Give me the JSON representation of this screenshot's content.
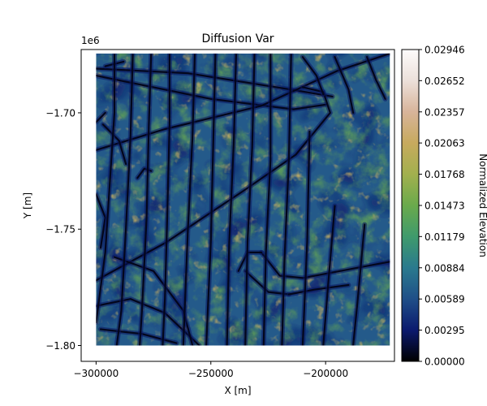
{
  "chart_data": {
    "type": "heatmap",
    "title": "Diffusion Var",
    "xlabel": "X [m]",
    "ylabel": "Y [m]",
    "y_offset_label": "1e6",
    "xlim": [
      -306500,
      -170000
    ],
    "ylim": [
      -1806800,
      -1672800
    ],
    "data_extent": {
      "x": [
        -300000,
        -172000
      ],
      "y": [
        -1800000,
        -1674500
      ]
    },
    "x_ticks": [
      {
        "value": -300000,
        "label": "−300000"
      },
      {
        "value": -250000,
        "label": "−250000"
      },
      {
        "value": -200000,
        "label": "−200000"
      }
    ],
    "y_ticks": [
      {
        "value": -1700000,
        "label": "−1.70"
      },
      {
        "value": -1750000,
        "label": "−1.75"
      },
      {
        "value": -1800000,
        "label": "−1.80"
      }
    ],
    "colorbar": {
      "label": "Normalized Elevation",
      "colormap": "gist_earth",
      "min": 0.0,
      "max": 0.02946,
      "ticks": [
        {
          "value": 0.0,
          "label": "0.00000"
        },
        {
          "value": 0.00295,
          "label": "0.00295"
        },
        {
          "value": 0.00589,
          "label": "0.00589"
        },
        {
          "value": 0.00884,
          "label": "0.00884"
        },
        {
          "value": 0.01179,
          "label": "0.01179"
        },
        {
          "value": 0.01473,
          "label": "0.01473"
        },
        {
          "value": 0.01768,
          "label": "0.01768"
        },
        {
          "value": 0.02063,
          "label": "0.02063"
        },
        {
          "value": 0.02357,
          "label": "0.02357"
        },
        {
          "value": 0.02652,
          "label": "0.02652"
        },
        {
          "value": 0.02946,
          "label": "0.02946"
        }
      ],
      "stops": [
        "#000000",
        "#0b1a6e",
        "#1f4f88",
        "#2a7a8e",
        "#3f9a6c",
        "#6aaa4c",
        "#a2b04e",
        "#c7aa5e",
        "#d8b49a",
        "#ece0da",
        "#fdfbfb"
      ]
    },
    "field_pattern": {
      "description_levels": {
        "background_low": 0.004,
        "typical": 0.012,
        "high_patches": 0.022
      }
    },
    "features": [
      {
        "kind": "track",
        "pts": [
          [
            -300000,
            -1681000
          ],
          [
            -260000,
            -1683000
          ],
          [
            -215000,
            -1690000
          ],
          [
            -197000,
            -1693000
          ]
        ]
      },
      {
        "kind": "track",
        "pts": [
          [
            -300000,
            -1684000
          ],
          [
            -250000,
            -1694000
          ],
          [
            -214000,
            -1698500
          ],
          [
            -200000,
            -1696500
          ]
        ]
      },
      {
        "kind": "track",
        "pts": [
          [
            -300000,
            -1716000
          ],
          [
            -270000,
            -1707000
          ],
          [
            -228000,
            -1697000
          ],
          [
            -195000,
            -1682000
          ],
          [
            -172000,
            -1674500
          ]
        ]
      },
      {
        "kind": "track",
        "pts": [
          [
            -300000,
            -1772000
          ],
          [
            -270000,
            -1756000
          ],
          [
            -235000,
            -1733000
          ],
          [
            -213000,
            -1718000
          ],
          [
            -198000,
            -1700000
          ],
          [
            -201000,
            -1691000
          ],
          [
            -210000,
            -1689000
          ]
        ]
      },
      {
        "kind": "track",
        "pts": [
          [
            -300000,
            -1783000
          ],
          [
            -285000,
            -1780000
          ],
          [
            -270000,
            -1786000
          ],
          [
            -255000,
            -1800000
          ]
        ]
      },
      {
        "kind": "track",
        "pts": [
          [
            -298000,
            -1793000
          ],
          [
            -280000,
            -1795000
          ],
          [
            -265000,
            -1799000
          ]
        ]
      },
      {
        "kind": "track",
        "pts": [
          [
            -292000,
            -1762000
          ],
          [
            -275000,
            -1768000
          ],
          [
            -262000,
            -1785000
          ],
          [
            -258000,
            -1800000
          ]
        ]
      },
      {
        "kind": "track",
        "pts": [
          [
            -228000,
            -1760000
          ],
          [
            -220000,
            -1770000
          ],
          [
            -210000,
            -1771000
          ],
          [
            -172000,
            -1764000
          ]
        ]
      },
      {
        "kind": "track",
        "pts": [
          [
            -238000,
            -1768000
          ],
          [
            -234000,
            -1760000
          ],
          [
            -228000,
            -1760000
          ]
        ]
      },
      {
        "kind": "track",
        "pts": [
          [
            -235000,
            -1768000
          ],
          [
            -225000,
            -1777000
          ],
          [
            -216000,
            -1778000
          ]
        ]
      },
      {
        "kind": "track",
        "pts": [
          [
            -216000,
            -1778000
          ],
          [
            -205000,
            -1776000
          ],
          [
            -190000,
            -1774000
          ]
        ]
      },
      {
        "kind": "track",
        "pts": [
          [
            -300000,
            -1735000
          ],
          [
            -296000,
            -1745000
          ],
          [
            -298000,
            -1758000
          ]
        ]
      },
      {
        "kind": "track",
        "pts": [
          [
            -297000,
            -1705000
          ],
          [
            -290000,
            -1712000
          ],
          [
            -287000,
            -1722000
          ]
        ]
      },
      {
        "kind": "track",
        "pts": [
          [
            -300000,
            -1704000
          ],
          [
            -296000,
            -1700000
          ]
        ]
      },
      {
        "kind": "track",
        "pts": [
          [
            -282000,
            -1728000
          ],
          [
            -279000,
            -1724000
          ],
          [
            -276000,
            -1725000
          ]
        ]
      },
      {
        "kind": "track",
        "pts": [
          [
            -296000,
            -1680000
          ],
          [
            -288000,
            -1678000
          ]
        ]
      },
      {
        "kind": "track",
        "pts": [
          [
            -210000,
            -1676000
          ],
          [
            -204000,
            -1684000
          ],
          [
            -201000,
            -1692000
          ]
        ]
      },
      {
        "kind": "track",
        "pts": [
          [
            -196000,
            -1676000
          ],
          [
            -190000,
            -1690000
          ],
          [
            -188000,
            -1700000
          ]
        ]
      },
      {
        "kind": "track",
        "pts": [
          [
            -182000,
            -1676000
          ],
          [
            -178000,
            -1686000
          ],
          [
            -174000,
            -1694000
          ]
        ]
      },
      {
        "kind": "track",
        "pts": [
          [
            -292000,
            -1675000
          ],
          [
            -292000,
            -1700000
          ],
          [
            -294000,
            -1730000
          ],
          [
            -296000,
            -1760000
          ],
          [
            -300000,
            -1790000
          ]
        ]
      },
      {
        "kind": "track",
        "pts": [
          [
            -284000,
            -1675000
          ],
          [
            -285000,
            -1710000
          ],
          [
            -287000,
            -1750000
          ],
          [
            -289000,
            -1785000
          ],
          [
            -291000,
            -1800000
          ]
        ]
      },
      {
        "kind": "track",
        "pts": [
          [
            -276000,
            -1675000
          ],
          [
            -277000,
            -1705000
          ],
          [
            -278000,
            -1745000
          ],
          [
            -280000,
            -1785000
          ],
          [
            -281000,
            -1800000
          ]
        ]
      },
      {
        "kind": "track",
        "pts": [
          [
            -268000,
            -1675000
          ],
          [
            -268000,
            -1705000
          ],
          [
            -269000,
            -1745000
          ],
          [
            -270000,
            -1780000
          ],
          [
            -271000,
            -1800000
          ]
        ]
      },
      {
        "kind": "track",
        "pts": [
          [
            -257000,
            -1675000
          ],
          [
            -258000,
            -1710000
          ],
          [
            -260000,
            -1750000
          ],
          [
            -262000,
            -1800000
          ]
        ]
      },
      {
        "kind": "track",
        "pts": [
          [
            -248000,
            -1675000
          ],
          [
            -249000,
            -1715000
          ],
          [
            -250000,
            -1755000
          ],
          [
            -252000,
            -1800000
          ]
        ]
      },
      {
        "kind": "track",
        "pts": [
          [
            -239000,
            -1675000
          ],
          [
            -240000,
            -1712000
          ],
          [
            -242000,
            -1756000
          ],
          [
            -243000,
            -1800000
          ]
        ]
      },
      {
        "kind": "track",
        "pts": [
          [
            -231000,
            -1675000
          ],
          [
            -232000,
            -1715000
          ],
          [
            -234000,
            -1755000
          ],
          [
            -235000,
            -1800000
          ]
        ]
      },
      {
        "kind": "track",
        "pts": [
          [
            -224000,
            -1675000
          ],
          [
            -224000,
            -1720000
          ],
          [
            -226000,
            -1760000
          ],
          [
            -227000,
            -1800000
          ]
        ]
      },
      {
        "kind": "track",
        "pts": [
          [
            -215000,
            -1675000
          ],
          [
            -216000,
            -1720000
          ],
          [
            -218000,
            -1765000
          ],
          [
            -219000,
            -1800000
          ]
        ]
      },
      {
        "kind": "track",
        "pts": [
          [
            -207000,
            -1708000
          ],
          [
            -208000,
            -1755000
          ],
          [
            -210000,
            -1800000
          ]
        ]
      },
      {
        "kind": "track",
        "pts": [
          [
            -196000,
            -1740000
          ],
          [
            -199000,
            -1775000
          ],
          [
            -201000,
            -1800000
          ]
        ]
      },
      {
        "kind": "track",
        "pts": [
          [
            -183000,
            -1748000
          ],
          [
            -186000,
            -1780000
          ],
          [
            -188000,
            -1800000
          ]
        ]
      }
    ]
  }
}
